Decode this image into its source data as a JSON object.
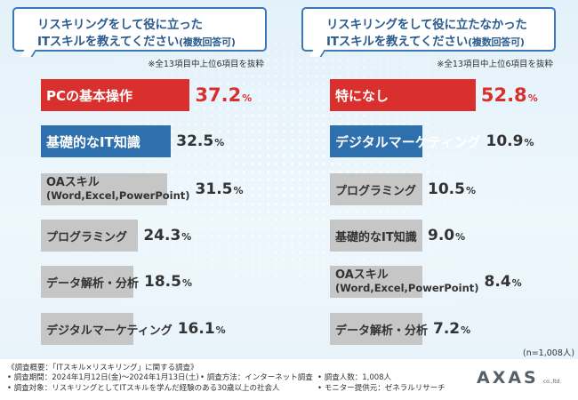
{
  "colors": {
    "highlight_red": "#d9302e",
    "highlight_blue": "#2e6fae",
    "bar_gray": "#c6c6c6",
    "accent_blue": "#3a78b8"
  },
  "extract_note": "※全13項目中上位6項目を抜粋",
  "sample_size": "(n=1,008人)",
  "chart_data": [
    {
      "type": "bar",
      "orientation": "horizontal",
      "title_line1": "リスキリングをして役に立った",
      "title_line2": "ITスキルを教えてください",
      "title_note": "(複数回答可)",
      "categories": [
        {
          "line1": "PCの基本操作"
        },
        {
          "line1": "基礎的なIT知識"
        },
        {
          "line1": "OAスキル",
          "line2": "(Word,Excel,PowerPoint)"
        },
        {
          "line1": "プログラミング"
        },
        {
          "line1": "データ解析・分析"
        },
        {
          "line1": "デジタルマーケティング"
        }
      ],
      "values": [
        37.2,
        32.5,
        31.5,
        24.3,
        18.5,
        16.1
      ],
      "unit": "%",
      "xlim": [
        0,
        40
      ],
      "highlight": [
        "red",
        "blue",
        "gray",
        "gray",
        "gray",
        "gray"
      ]
    },
    {
      "type": "bar",
      "orientation": "horizontal",
      "title_line1": "リスキリングをして役に立たなかった",
      "title_line2": "ITスキルを教えてください",
      "title_note": "(複数回答可)",
      "categories": [
        {
          "line1": "特になし"
        },
        {
          "line1": "デジタルマーケティング"
        },
        {
          "line1": "プログラミング"
        },
        {
          "line1": "基礎的なIT知識"
        },
        {
          "line1": "OAスキル",
          "line2": "(Word,Excel,PowerPoint)"
        },
        {
          "line1": "データ解析・分析"
        }
      ],
      "values": [
        52.8,
        10.9,
        10.5,
        9.0,
        8.4,
        7.2
      ],
      "unit": "%",
      "xlim": [
        0,
        58
      ],
      "highlight": [
        "red",
        "blue",
        "gray",
        "gray",
        "gray",
        "gray"
      ]
    }
  ],
  "footer": {
    "overview": "《調査概要：「ITスキル×リスキリング」に関する調査》",
    "period": "• 調査期間：2024年1月12日(金)～2024年1月13日(土)",
    "method": "• 調査方法：インターネット調査",
    "count": "• 調査人数：1,008人",
    "target": "• 調査対象：リスキリングとしてITスキルを学んだ経験のある30歳以上の社会人",
    "provider": "• モニター提供元：ゼネラルリサーチ"
  },
  "logo": {
    "text": "AXAS",
    "sub": "co.,ltd."
  }
}
